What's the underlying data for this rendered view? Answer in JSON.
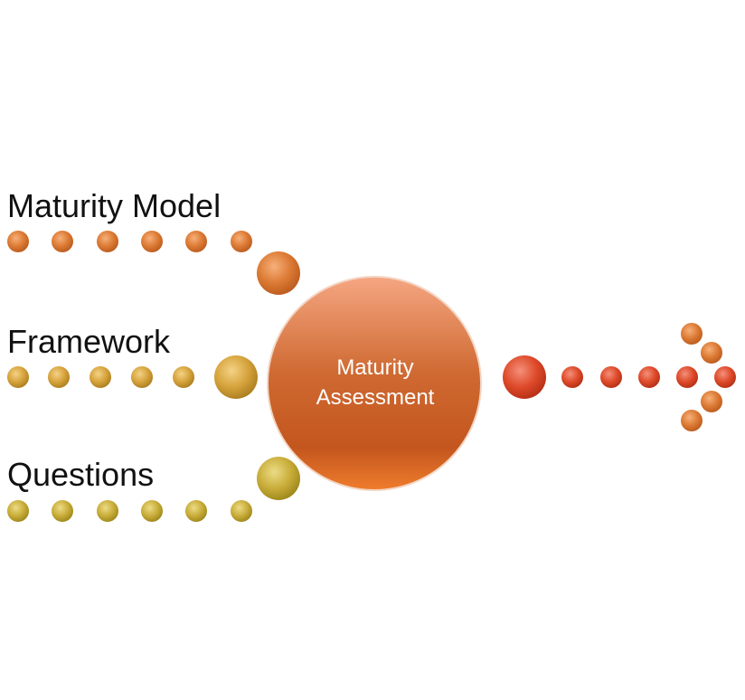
{
  "inputs": [
    {
      "label": "Maturity Model",
      "color": "#d9782a"
    },
    {
      "label": "Framework",
      "color": "#d4a13a"
    },
    {
      "label": "Questions",
      "color": "#c9ad3a"
    }
  ],
  "center": {
    "line1": "Maturity",
    "line2": "Assessment",
    "color": "#c65a22"
  },
  "output": {
    "color": "#dd3a24"
  }
}
